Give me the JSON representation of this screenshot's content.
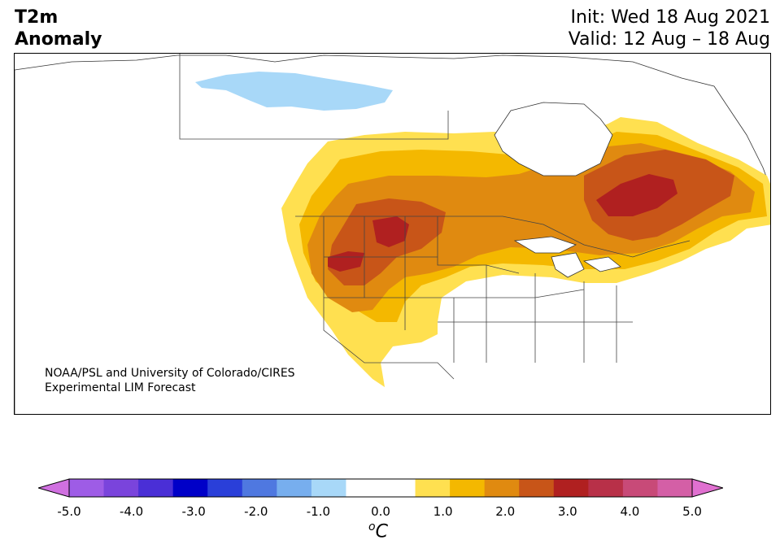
{
  "title": {
    "variable": "T2m",
    "kind": "Anomaly",
    "init": "Init: Wed 18 Aug 2021",
    "valid": "Valid: 12 Aug – 18 Aug"
  },
  "credit": {
    "line1": "NOAA/PSL and University of Colorado/CIRES",
    "line2": "Experimental LIM Forecast"
  },
  "colorbar": {
    "unit": "°C",
    "unit_display": "oC",
    "ticks": [
      "-5.0",
      "-4.0",
      "-3.0",
      "-2.0",
      "-1.0",
      "0.0",
      "1.0",
      "2.0",
      "3.0",
      "4.0",
      "5.0"
    ],
    "colors": [
      "#9e5ce6",
      "#7a44dc",
      "#4a2fd6",
      "#0000c8",
      "#2a3fd9",
      "#4f78e0",
      "#77aeee",
      "#a8d8f8",
      "#ffffff",
      "#ffffff",
      "#ffe050",
      "#f4b800",
      "#e08a10",
      "#c85518",
      "#b02020",
      "#b83048",
      "#c84a78",
      "#d45fa6"
    ],
    "extend_low_color": "#d070e0",
    "extend_high_color": "#e070d0"
  },
  "legend_colors": {
    "ocean": "#ffffff",
    "land_neutral": "#ffffff",
    "anom_0_5_1": "#ffe050",
    "anom_1_1_5": "#f4b800",
    "anom_1_5_2": "#e08a10",
    "anom_2_2_5": "#c85518",
    "anom_2_5_3": "#b02020",
    "anom_neg_0_5_1": "#a8d8f8"
  }
}
